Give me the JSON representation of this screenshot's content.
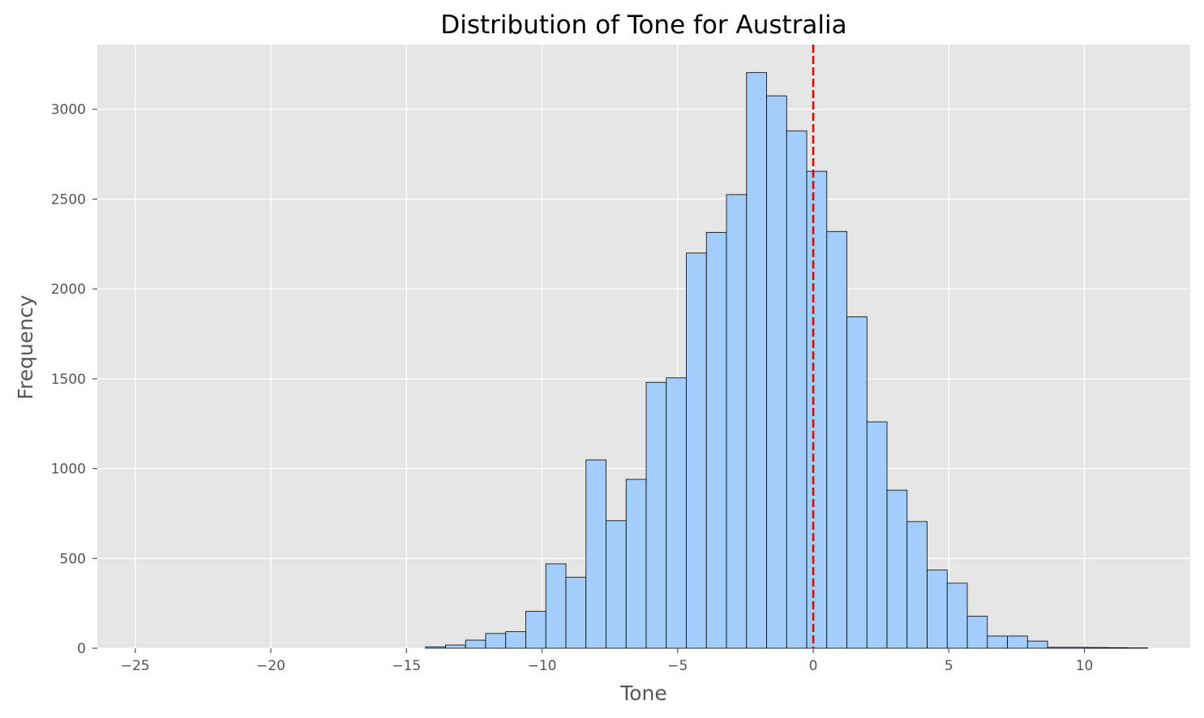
{
  "chart_data": {
    "type": "bar",
    "title": "Distribution of Tone for Australia",
    "xlabel": "Tone",
    "ylabel": "Frequency",
    "xlim": [
      -26.4,
      13.9
    ],
    "ylim": [
      0,
      3360
    ],
    "xticks": [
      -25,
      -20,
      -15,
      -10,
      -5,
      0,
      5,
      10
    ],
    "xtick_labels": [
      "−25",
      "−20",
      "−15",
      "−10",
      "−5",
      "0",
      "5",
      "10"
    ],
    "yticks": [
      0,
      500,
      1000,
      1500,
      2000,
      2500,
      3000
    ],
    "ytick_labels": [
      "0",
      "500",
      "1000",
      "1500",
      "2000",
      "2500",
      "3000"
    ],
    "grid": true,
    "bin_edges": [
      -14.3,
      -13.56,
      -12.82,
      -12.08,
      -11.34,
      -10.6,
      -9.86,
      -9.12,
      -8.38,
      -7.64,
      -6.9,
      -6.16,
      -5.42,
      -4.68,
      -3.94,
      -3.2,
      -2.46,
      -1.72,
      -0.98,
      -0.24,
      0.5,
      1.24,
      1.98,
      2.72,
      3.46,
      4.2,
      4.94,
      5.68,
      6.42,
      7.16,
      7.9,
      8.64,
      9.38,
      10.12,
      10.86,
      11.6,
      12.34
    ],
    "values": [
      8,
      18,
      45,
      82,
      92,
      205,
      470,
      395,
      1048,
      710,
      940,
      1480,
      1505,
      2200,
      2315,
      2525,
      3205,
      3075,
      2880,
      2655,
      2320,
      1845,
      1260,
      880,
      705,
      435,
      362,
      178,
      68,
      68,
      40,
      5,
      5,
      4,
      3,
      2
    ],
    "bar_color": "#a3cdfb",
    "edge_color": "#000000",
    "background_color": "#e5e5e5",
    "grid_color": "#ffffff",
    "reference_line": {
      "x": 0,
      "color": "#e00000",
      "style": "dashed"
    }
  }
}
